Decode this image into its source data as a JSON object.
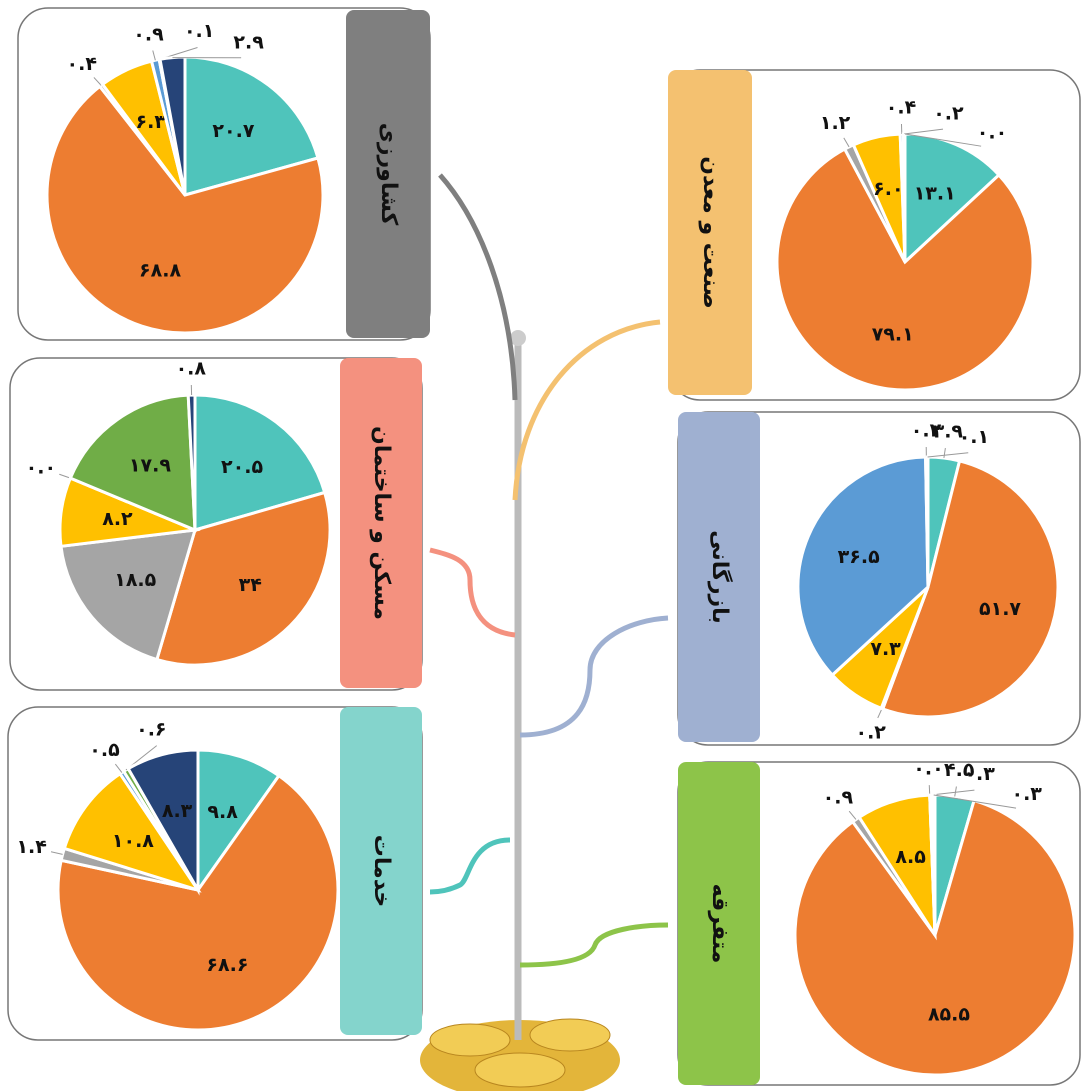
{
  "chart_data": [
    {
      "type": "pie",
      "title": "کشاورزی",
      "title_color": "#7f7f7f",
      "values": [
        20.7,
        68.8,
        0.4,
        6.3,
        0.9,
        0.1,
        2.9
      ],
      "value_labels": [
        "۲۰.۷",
        "۶۸.۸",
        "۰.۴",
        "۶.۳",
        "۰.۹",
        "۰.۱",
        "۲.۹"
      ],
      "colors": [
        "#4fc4bb",
        "#ed7d31",
        "#a5a5a5",
        "#ffc000",
        "#5b9bd5",
        "#70ad47",
        "#264478"
      ]
    },
    {
      "type": "pie",
      "title": "صنعت و معدن",
      "title_color": "#f4c170",
      "values": [
        13.1,
        79.1,
        1.2,
        6.0,
        0.4,
        0.2,
        0.0
      ],
      "value_labels": [
        "۱۳.۱",
        "۷۹.۱",
        "۱.۲",
        "۶.۰",
        "۰.۴",
        "۰.۲",
        "۰.۰"
      ],
      "colors": [
        "#4fc4bb",
        "#ed7d31",
        "#a5a5a5",
        "#ffc000",
        "#5b9bd5",
        "#70ad47",
        "#264478"
      ]
    },
    {
      "type": "pie",
      "title": "مسکن و ساختمان",
      "title_color": "#f4917f",
      "values": [
        20.5,
        34,
        18.5,
        8.2,
        0.0,
        17.9,
        0.8
      ],
      "value_labels": [
        "۲۰.۵",
        "۳۴",
        "۱۸.۵",
        "۸.۲",
        "۰.۰",
        "۱۷.۹",
        "۰.۸"
      ],
      "colors": [
        "#4fc4bb",
        "#ed7d31",
        "#a5a5a5",
        "#ffc000",
        "#5b9bd5",
        "#70ad47",
        "#264478"
      ]
    },
    {
      "type": "pie",
      "title": "بازرگانی",
      "title_color": "#9fb0d1",
      "values": [
        3.9,
        51.7,
        0.2,
        7.3,
        36.5,
        0.2,
        0.1
      ],
      "value_labels": [
        "۳.۹",
        "۵۱.۷",
        "۰.۲",
        "۷.۳",
        "۳۶.۵",
        "۰.۲",
        "۰.۱"
      ],
      "colors": [
        "#4fc4bb",
        "#ed7d31",
        "#a5a5a5",
        "#ffc000",
        "#5b9bd5",
        "#70ad47",
        "#264478"
      ]
    },
    {
      "type": "pie",
      "title": "خدمات",
      "title_color": "#84d4cc",
      "values": [
        9.8,
        68.6,
        1.4,
        10.8,
        0.5,
        0.6,
        8.3
      ],
      "value_labels": [
        "۹.۸",
        "۶۸.۶",
        "۱.۴",
        "۱۰.۸",
        "۰.۵",
        "۰.۶",
        "۸.۳"
      ],
      "colors": [
        "#4fc4bb",
        "#ed7d31",
        "#a5a5a5",
        "#ffc000",
        "#5b9bd5",
        "#70ad47",
        "#264478"
      ]
    },
    {
      "type": "pie",
      "title": "متفرقه",
      "title_color": "#8dc449",
      "values": [
        4.5,
        85.5,
        0.9,
        8.5,
        0.0,
        0.3,
        0.3
      ],
      "value_labels": [
        "۴.۵",
        "۸۵.۵",
        "۰.۹",
        "۸.۵",
        "۰.۰",
        "۰.۳",
        "۰.۳"
      ],
      "colors": [
        "#4fc4bb",
        "#ed7d31",
        "#a5a5a5",
        "#ffc000",
        "#5b9bd5",
        "#70ad47",
        "#264478"
      ]
    }
  ]
}
